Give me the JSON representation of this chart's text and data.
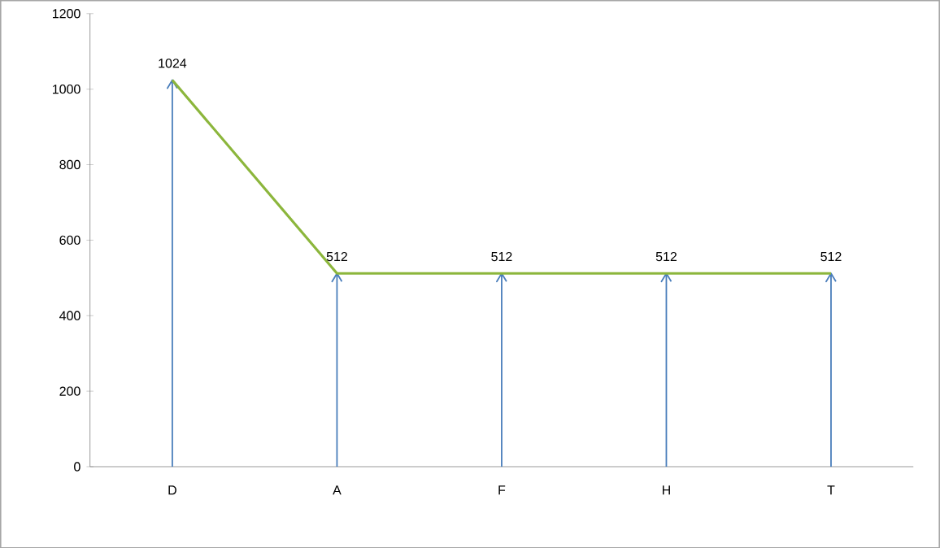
{
  "chart_data": {
    "type": "line",
    "categories": [
      "D",
      "A",
      "F",
      "H",
      "T"
    ],
    "series": [
      {
        "color": "#8cb63c",
        "values": [
          1024,
          512,
          512,
          512,
          512
        ],
        "errors": [
          [
            0,
            1024
          ],
          [
            0,
            512
          ],
          [
            0,
            512
          ],
          [
            0,
            512
          ],
          [
            0,
            512
          ]
        ]
      }
    ],
    "ylim": [
      0,
      1200
    ],
    "yticks": [
      0,
      200,
      400,
      600,
      800,
      1000,
      1200
    ],
    "data_labels": true,
    "grid": false,
    "marker": "none",
    "line_style": "solid"
  }
}
